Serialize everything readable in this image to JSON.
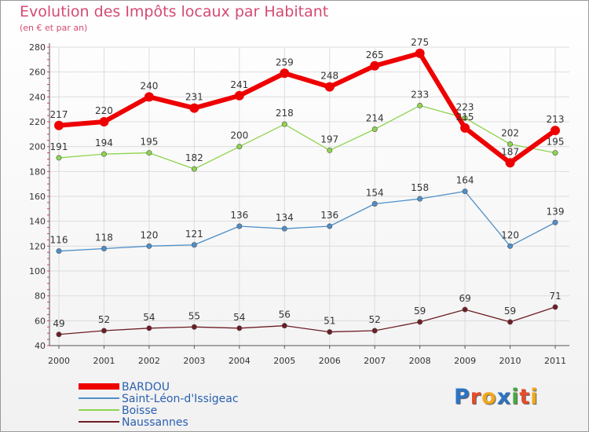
{
  "header": {
    "title": "Evolution des Impôts locaux par Habitant",
    "subtitle": "(en € et par an)"
  },
  "logo": {
    "text": "Proxiti",
    "colors": [
      "#2b74c4",
      "#e64b2b",
      "#f0a81c",
      "#2b74c4",
      "#48a843",
      "#e64b2b",
      "#f0a81c"
    ]
  },
  "chart_data": {
    "type": "line",
    "title": "Evolution des Impôts locaux par Habitant",
    "subtitle": "(en € et par an)",
    "xlabel": "",
    "ylabel": "",
    "x": [
      "2000",
      "2001",
      "2002",
      "2003",
      "2004",
      "2005",
      "2006",
      "2007",
      "2008",
      "2009",
      "2010",
      "2011"
    ],
    "ylim": [
      40,
      280
    ],
    "yticks": [
      40,
      60,
      80,
      100,
      120,
      140,
      160,
      180,
      200,
      220,
      240,
      260,
      280
    ],
    "grid": true,
    "legend_position": "bottom-left",
    "series": [
      {
        "name": "BARDOU",
        "color": "#ee0000",
        "values": [
          217,
          220,
          240,
          231,
          241,
          259,
          248,
          265,
          275,
          215,
          187,
          213
        ]
      },
      {
        "name": "Saint-Léon-d'Issigeac",
        "color": "#4f8fc8",
        "values": [
          116,
          118,
          120,
          121,
          136,
          134,
          136,
          154,
          158,
          164,
          120,
          139
        ]
      },
      {
        "name": "Boisse",
        "color": "#8ed44f",
        "values": [
          191,
          194,
          195,
          182,
          200,
          218,
          197,
          214,
          233,
          223,
          202,
          195
        ]
      },
      {
        "name": "Naussannes",
        "color": "#6d1d24",
        "values": [
          49,
          52,
          54,
          55,
          54,
          56,
          51,
          52,
          59,
          69,
          59,
          71
        ]
      }
    ]
  }
}
